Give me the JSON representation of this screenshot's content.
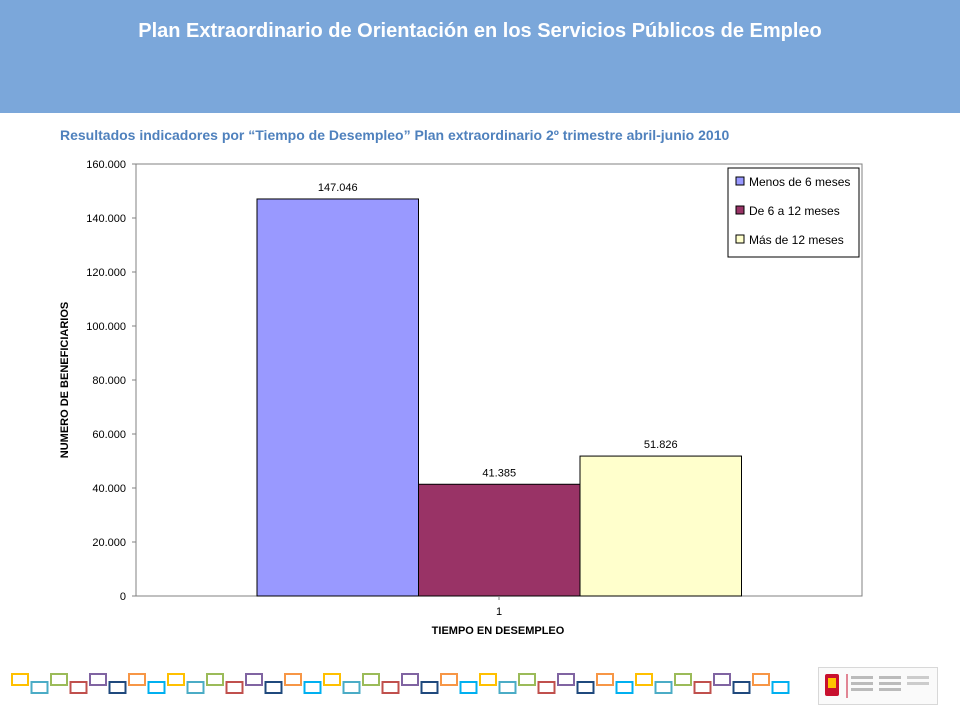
{
  "header": {
    "title": "Plan Extraordinario de Orientación en los Servicios Públicos de Empleo"
  },
  "subtitle": "Resultados indicadores por “Tiempo de Desempleo” Plan extraordinario 2º trimestre abril-junio 2010",
  "colors": {
    "header_bg": "#7ba7da",
    "subtitle": "#4f81bd",
    "series": [
      "#9999ff",
      "#993366",
      "#ffffcc"
    ]
  },
  "chart_data": {
    "type": "bar",
    "categories": [
      "1"
    ],
    "series": [
      {
        "name": "Menos de 6 meses",
        "values": [
          147046
        ],
        "label": "147.046"
      },
      {
        "name": "De 6 a 12 meses",
        "values": [
          41385
        ],
        "label": "41.385"
      },
      {
        "name": "Más de 12 meses",
        "values": [
          51826
        ],
        "label": "51.826"
      }
    ],
    "xlabel": "TIEMPO EN DESEMPLEO",
    "ylabel": "NUMERO DE BENEFICIARIOS",
    "ylim": [
      0,
      160000
    ],
    "yticks": [
      "0",
      "20.000",
      "40.000",
      "60.000",
      "80.000",
      "100.000",
      "120.000",
      "140.000",
      "160.000"
    ],
    "grid": false,
    "legend_position": "top-right"
  },
  "footer": {
    "logo": "gobierno-de-espana-ministerio-de-trabajo-logo"
  }
}
